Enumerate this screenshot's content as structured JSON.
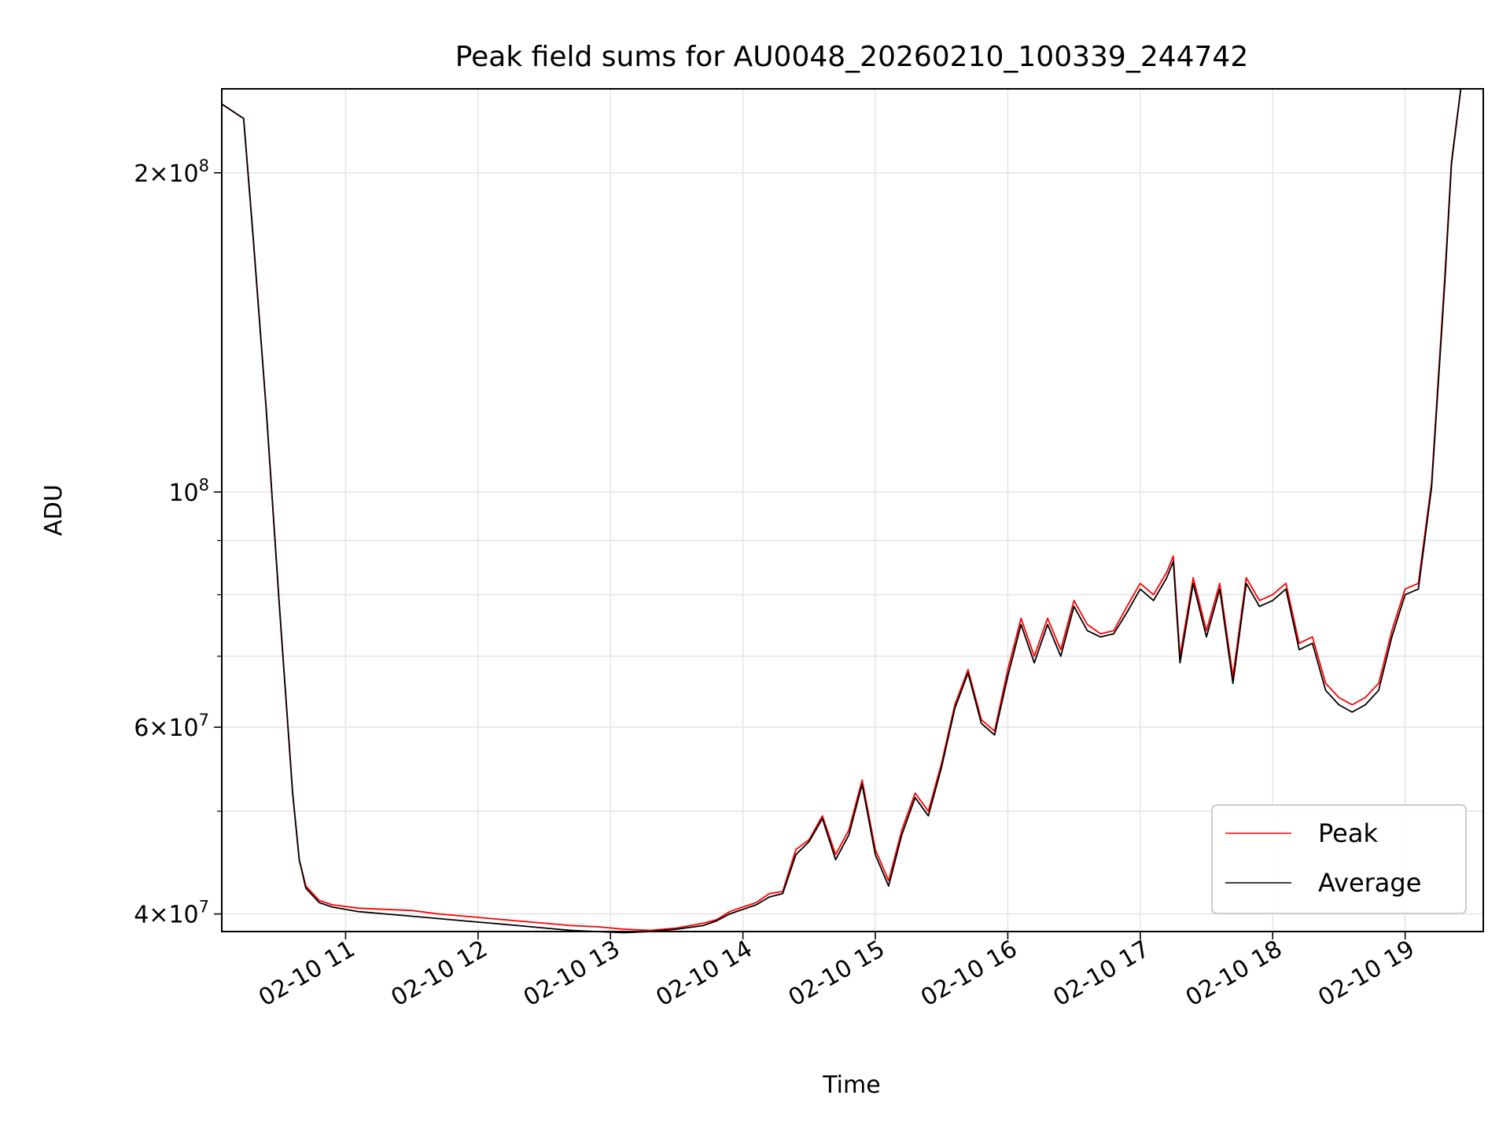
{
  "chart_data": {
    "type": "line",
    "title": "Peak field sums for AU0048_20260210_100339_244742",
    "xlabel": "Time",
    "ylabel": "ADU",
    "x_range": [
      "02-10 10:04",
      "02-10 19:35"
    ],
    "xlim_hours": [
      10.065,
      19.59
    ],
    "ylim": [
      38500000,
      240000000
    ],
    "y_scale": "log",
    "grid": true,
    "legend_position": "lower-right",
    "x_ticks": [
      {
        "hour": 11,
        "label": "02-10 11"
      },
      {
        "hour": 12,
        "label": "02-10 12"
      },
      {
        "hour": 13,
        "label": "02-10 13"
      },
      {
        "hour": 14,
        "label": "02-10 14"
      },
      {
        "hour": 15,
        "label": "02-10 15"
      },
      {
        "hour": 16,
        "label": "02-10 16"
      },
      {
        "hour": 17,
        "label": "02-10 17"
      },
      {
        "hour": 18,
        "label": "02-10 18"
      },
      {
        "hour": 19,
        "label": "02-10 19"
      }
    ],
    "y_major_ticks": [
      {
        "value": 40000000,
        "mant": "4",
        "exp": "7"
      },
      {
        "value": 60000000,
        "mant": "6",
        "exp": "7"
      },
      {
        "value": 100000000,
        "mant": "",
        "exp": "8"
      },
      {
        "value": 200000000,
        "mant": "2",
        "exp": "8"
      }
    ],
    "y_minor_grid": [
      50000000,
      70000000,
      80000000,
      90000000
    ],
    "series": [
      {
        "name": "Peak",
        "color": "#ff0000",
        "x": [
          10.07,
          10.23,
          10.3,
          10.4,
          10.5,
          10.6,
          10.65,
          10.7,
          10.8,
          10.9,
          11.1,
          11.3,
          11.5,
          11.7,
          11.9,
          12.1,
          12.3,
          12.5,
          12.7,
          12.9,
          13.1,
          13.3,
          13.5,
          13.7,
          13.8,
          13.9,
          14.0,
          14.1,
          14.2,
          14.3,
          14.4,
          14.5,
          14.6,
          14.7,
          14.8,
          14.9,
          15.0,
          15.1,
          15.2,
          15.3,
          15.4,
          15.5,
          15.6,
          15.7,
          15.8,
          15.9,
          16.0,
          16.1,
          16.2,
          16.3,
          16.4,
          16.5,
          16.6,
          16.7,
          16.8,
          16.9,
          17.0,
          17.1,
          17.2,
          17.25,
          17.3,
          17.4,
          17.5,
          17.6,
          17.7,
          17.8,
          17.9,
          18.0,
          18.1,
          18.2,
          18.3,
          18.4,
          18.5,
          18.6,
          18.7,
          18.8,
          18.9,
          19.0,
          19.1,
          19.2,
          19.3,
          19.35,
          19.42,
          19.59
        ],
        "y": [
          232000000,
          225000000,
          175000000,
          120000000,
          78000000,
          52000000,
          45000000,
          42500000,
          41200000,
          40800000,
          40500000,
          40400000,
          40300000,
          40000000,
          39800000,
          39600000,
          39400000,
          39200000,
          39000000,
          38900000,
          38700000,
          38600000,
          38800000,
          39200000,
          39500000,
          40200000,
          40600000,
          41000000,
          41800000,
          42000000,
          46000000,
          47000000,
          49500000,
          45500000,
          48000000,
          53500000,
          46000000,
          43000000,
          48000000,
          52000000,
          50000000,
          55500000,
          63000000,
          68000000,
          61000000,
          59500000,
          68000000,
          76000000,
          70000000,
          76000000,
          71000000,
          79000000,
          75000000,
          73500000,
          74000000,
          78000000,
          82000000,
          80000000,
          84000000,
          87000000,
          70000000,
          83000000,
          74000000,
          82000000,
          67000000,
          83000000,
          79000000,
          80000000,
          82000000,
          72000000,
          73000000,
          66000000,
          64000000,
          63000000,
          64000000,
          66000000,
          74000000,
          81000000,
          82000000,
          102000000,
          160000000,
          205000000,
          240000000,
          240000000
        ]
      },
      {
        "name": "Average",
        "color": "#000000",
        "x": [
          10.07,
          10.23,
          10.3,
          10.4,
          10.5,
          10.6,
          10.65,
          10.7,
          10.8,
          10.9,
          11.1,
          11.3,
          11.5,
          11.7,
          11.9,
          12.1,
          12.3,
          12.5,
          12.7,
          12.9,
          13.1,
          13.3,
          13.5,
          13.7,
          13.8,
          13.9,
          14.0,
          14.1,
          14.2,
          14.3,
          14.4,
          14.5,
          14.6,
          14.7,
          14.8,
          14.9,
          15.0,
          15.1,
          15.2,
          15.3,
          15.4,
          15.5,
          15.6,
          15.7,
          15.8,
          15.9,
          16.0,
          16.1,
          16.2,
          16.3,
          16.4,
          16.5,
          16.6,
          16.7,
          16.8,
          16.9,
          17.0,
          17.1,
          17.2,
          17.25,
          17.3,
          17.4,
          17.5,
          17.6,
          17.7,
          17.8,
          17.9,
          18.0,
          18.1,
          18.2,
          18.3,
          18.4,
          18.5,
          18.6,
          18.7,
          18.8,
          18.9,
          19.0,
          19.1,
          19.2,
          19.3,
          19.35,
          19.42,
          19.59
        ],
        "y": [
          232000000,
          225000000,
          175000000,
          120000000,
          78000000,
          52000000,
          45000000,
          42300000,
          41000000,
          40600000,
          40200000,
          40000000,
          39800000,
          39600000,
          39400000,
          39200000,
          39000000,
          38800000,
          38600000,
          38500000,
          38400000,
          38500000,
          38700000,
          39000000,
          39400000,
          40000000,
          40400000,
          40800000,
          41500000,
          41800000,
          45500000,
          46800000,
          49200000,
          45000000,
          47500000,
          53000000,
          45500000,
          42500000,
          47500000,
          51500000,
          49500000,
          55000000,
          62500000,
          67500000,
          60500000,
          59000000,
          67000000,
          75000000,
          69000000,
          75000000,
          70000000,
          78000000,
          74000000,
          73000000,
          73500000,
          77000000,
          81000000,
          79000000,
          83000000,
          86000000,
          69000000,
          82000000,
          73000000,
          81000000,
          66000000,
          82000000,
          78000000,
          79000000,
          81000000,
          71000000,
          72000000,
          65000000,
          63000000,
          62000000,
          63000000,
          65000000,
          73000000,
          80000000,
          81000000,
          101000000,
          158000000,
          204000000,
          240000000,
          240000000
        ]
      }
    ]
  }
}
